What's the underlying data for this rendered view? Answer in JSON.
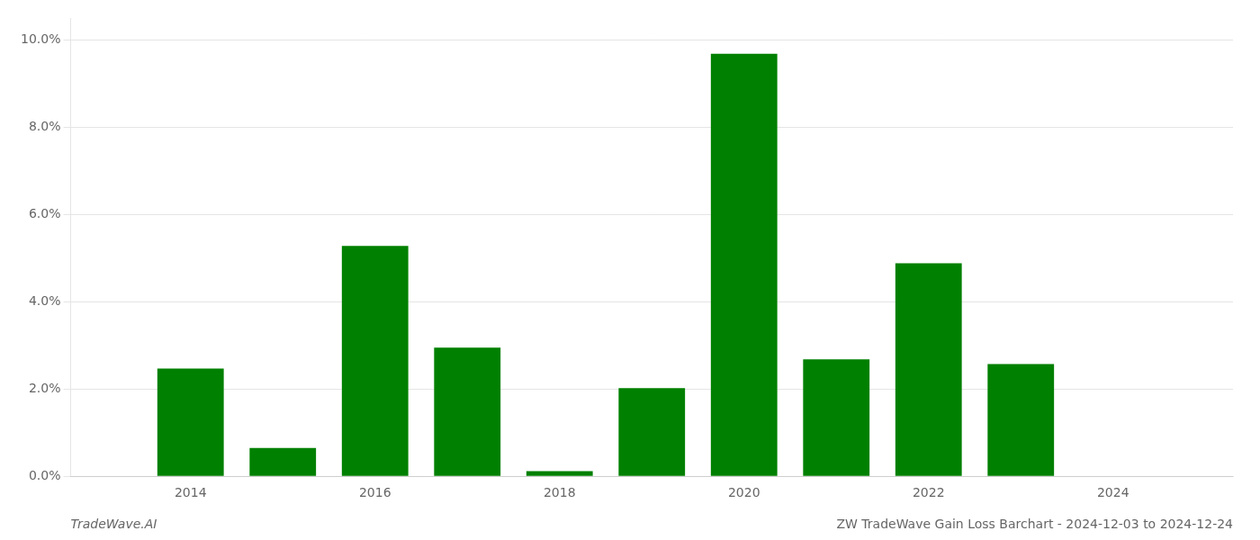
{
  "chart_data": {
    "type": "bar",
    "x": [
      2014,
      2015,
      2016,
      2017,
      2018,
      2019,
      2020,
      2021,
      2022,
      2023,
      2024
    ],
    "values": [
      0.0247,
      0.0065,
      0.0528,
      0.0295,
      0.0012,
      0.0202,
      0.0968,
      0.0268,
      0.0488,
      0.0257,
      0.0
    ],
    "color": "#008000",
    "xlim": [
      2012.7,
      2025.3
    ],
    "xticks": [
      2014,
      2016,
      2018,
      2020,
      2022,
      2024
    ],
    "ylim": [
      0,
      0.105
    ],
    "yticks": [
      {
        "value": 0.0,
        "label": "0.0%"
      },
      {
        "value": 0.02,
        "label": "2.0%"
      },
      {
        "value": 0.04,
        "label": "4.0%"
      },
      {
        "value": 0.06,
        "label": "6.0%"
      },
      {
        "value": 0.08,
        "label": "8.0%"
      },
      {
        "value": 0.1,
        "label": "10.0%"
      }
    ],
    "grid": "y",
    "annotations": [
      "TradeWave.AI",
      "ZW TradeWave Gain Loss Barchart - 2024-12-03 to 2024-12-24"
    ]
  }
}
